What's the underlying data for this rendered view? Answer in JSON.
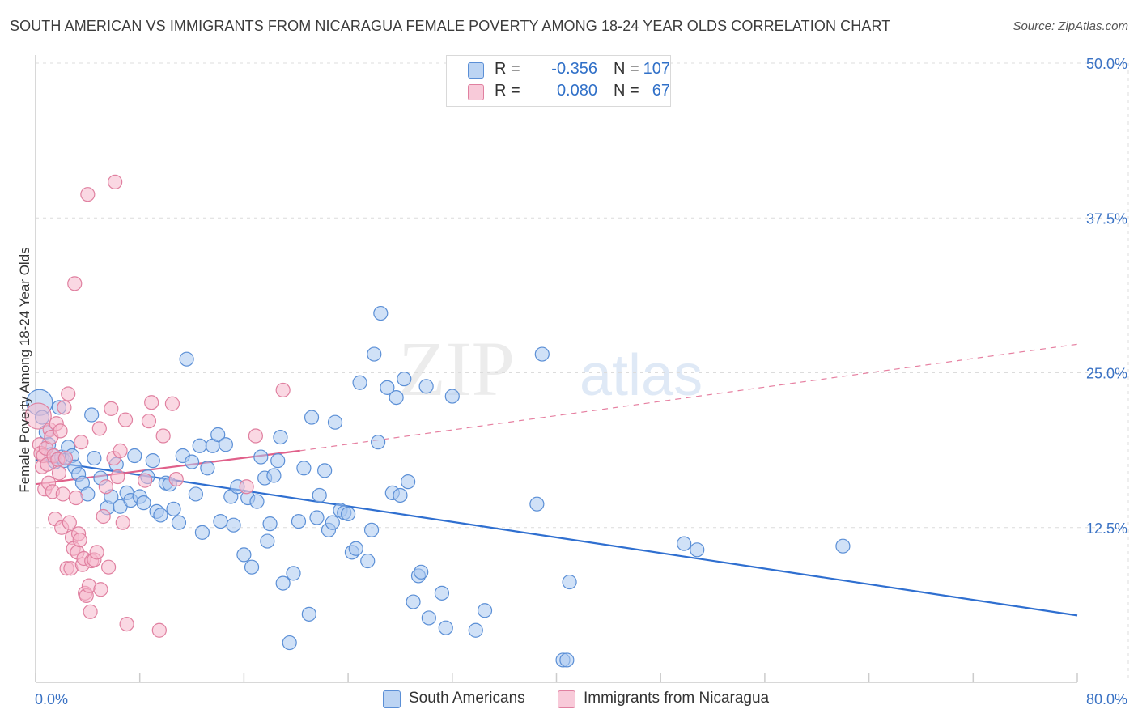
{
  "header": {
    "title": "SOUTH AMERICAN VS IMMIGRANTS FROM NICARAGUA FEMALE POVERTY AMONG 18-24 YEAR OLDS CORRELATION CHART",
    "source": "Source: ZipAtlas.com"
  },
  "legend_top": {
    "rows": [
      {
        "r_label": "R =",
        "r_value": "-0.356",
        "n_label": "N =",
        "n_value": "107"
      },
      {
        "r_label": "R =",
        "r_value": "0.080",
        "n_label": "N =",
        "n_value": "67"
      }
    ]
  },
  "legend_bottom": {
    "items": [
      {
        "label": "South Americans"
      },
      {
        "label": "Immigrants from Nicaragua"
      }
    ]
  },
  "watermark": {
    "part1": "ZIP",
    "part2": "atlas"
  },
  "colors": {
    "blue_fill": "#a9c8f0",
    "blue_stroke": "#5b8fd6",
    "blue_line": "#2f6fd0",
    "pink_fill": "#f5b8cc",
    "pink_stroke": "#e080a0",
    "pink_line": "#e0608a",
    "grid": "#dcdcdc",
    "axis": "#cccccc",
    "tick_label": "#3a72c4"
  },
  "chart_data": {
    "type": "scatter",
    "title": "SOUTH AMERICAN VS IMMIGRANTS FROM NICARAGUA FEMALE POVERTY AMONG 18-24 YEAR OLDS CORRELATION CHART",
    "xlabel": "",
    "ylabel": "Female Poverty Among 18-24 Year Olds",
    "xlim": [
      0,
      80
    ],
    "ylim": [
      0,
      50
    ],
    "x_tick_labels": [
      {
        "value": 0,
        "label": "0.0%"
      },
      {
        "value": 80,
        "label": "80.0%"
      }
    ],
    "y_tick_labels": [
      {
        "value": 12.5,
        "label": "12.5%"
      },
      {
        "value": 25,
        "label": "25.0%"
      },
      {
        "value": 37.5,
        "label": "37.5%"
      },
      {
        "value": 50,
        "label": "50.0%"
      }
    ],
    "grid": true,
    "legend_position": "top-center",
    "series": [
      {
        "name": "South Americans",
        "r": -0.356,
        "n": 107,
        "trend": {
          "x": [
            0,
            80
          ],
          "y": [
            18.0,
            5.4
          ],
          "style": "solid"
        },
        "points": [
          {
            "x": 0.3,
            "y": 22.6
          },
          {
            "x": 0.5,
            "y": 21.4
          },
          {
            "x": 0.8,
            "y": 20.2
          },
          {
            "x": 1.0,
            "y": 19.2
          },
          {
            "x": 1.2,
            "y": 18.4
          },
          {
            "x": 1.5,
            "y": 17.8
          },
          {
            "x": 1.8,
            "y": 22.2
          },
          {
            "x": 2.0,
            "y": 18.2
          },
          {
            "x": 2.2,
            "y": 17.9
          },
          {
            "x": 2.5,
            "y": 19.0
          },
          {
            "x": 2.8,
            "y": 18.3
          },
          {
            "x": 3.0,
            "y": 17.4
          },
          {
            "x": 3.3,
            "y": 16.8
          },
          {
            "x": 3.6,
            "y": 16.1
          },
          {
            "x": 4.0,
            "y": 15.2
          },
          {
            "x": 4.3,
            "y": 21.6
          },
          {
            "x": 4.5,
            "y": 18.1
          },
          {
            "x": 5.0,
            "y": 16.5
          },
          {
            "x": 5.5,
            "y": 14.1
          },
          {
            "x": 5.8,
            "y": 15.0
          },
          {
            "x": 6.2,
            "y": 17.6
          },
          {
            "x": 6.5,
            "y": 14.2
          },
          {
            "x": 7.0,
            "y": 15.3
          },
          {
            "x": 7.3,
            "y": 14.7
          },
          {
            "x": 7.6,
            "y": 18.3
          },
          {
            "x": 8.0,
            "y": 15.0
          },
          {
            "x": 8.3,
            "y": 14.5
          },
          {
            "x": 8.6,
            "y": 16.6
          },
          {
            "x": 9.0,
            "y": 17.9
          },
          {
            "x": 9.3,
            "y": 13.8
          },
          {
            "x": 9.6,
            "y": 13.5
          },
          {
            "x": 10.0,
            "y": 16.1
          },
          {
            "x": 10.3,
            "y": 16.0
          },
          {
            "x": 10.6,
            "y": 14.0
          },
          {
            "x": 11.0,
            "y": 12.9
          },
          {
            "x": 11.3,
            "y": 18.3
          },
          {
            "x": 11.6,
            "y": 26.1
          },
          {
            "x": 12.0,
            "y": 17.8
          },
          {
            "x": 12.3,
            "y": 15.2
          },
          {
            "x": 12.6,
            "y": 19.1
          },
          {
            "x": 12.8,
            "y": 12.1
          },
          {
            "x": 13.2,
            "y": 17.3
          },
          {
            "x": 13.6,
            "y": 19.1
          },
          {
            "x": 14.0,
            "y": 20.0
          },
          {
            "x": 14.2,
            "y": 13.0
          },
          {
            "x": 14.6,
            "y": 19.2
          },
          {
            "x": 15.0,
            "y": 15.0
          },
          {
            "x": 15.2,
            "y": 12.7
          },
          {
            "x": 15.5,
            "y": 15.8
          },
          {
            "x": 16.0,
            "y": 10.3
          },
          {
            "x": 16.3,
            "y": 14.9
          },
          {
            "x": 16.6,
            "y": 9.3
          },
          {
            "x": 17.0,
            "y": 14.6
          },
          {
            "x": 17.3,
            "y": 18.2
          },
          {
            "x": 17.6,
            "y": 16.5
          },
          {
            "x": 17.8,
            "y": 11.4
          },
          {
            "x": 18.0,
            "y": 12.8
          },
          {
            "x": 18.3,
            "y": 16.7
          },
          {
            "x": 18.6,
            "y": 17.9
          },
          {
            "x": 18.8,
            "y": 19.8
          },
          {
            "x": 19.0,
            "y": 8.0
          },
          {
            "x": 19.5,
            "y": 3.2
          },
          {
            "x": 19.8,
            "y": 8.8
          },
          {
            "x": 20.2,
            "y": 13.0
          },
          {
            "x": 20.6,
            "y": 17.3
          },
          {
            "x": 21.0,
            "y": 5.5
          },
          {
            "x": 21.2,
            "y": 21.4
          },
          {
            "x": 21.6,
            "y": 13.3
          },
          {
            "x": 21.8,
            "y": 15.1
          },
          {
            "x": 22.2,
            "y": 17.1
          },
          {
            "x": 22.5,
            "y": 12.3
          },
          {
            "x": 22.8,
            "y": 12.9
          },
          {
            "x": 23.0,
            "y": 21.0
          },
          {
            "x": 23.4,
            "y": 13.9
          },
          {
            "x": 23.7,
            "y": 13.7
          },
          {
            "x": 24.0,
            "y": 13.6
          },
          {
            "x": 24.3,
            "y": 10.5
          },
          {
            "x": 24.6,
            "y": 10.8
          },
          {
            "x": 24.9,
            "y": 24.2
          },
          {
            "x": 25.5,
            "y": 9.8
          },
          {
            "x": 25.8,
            "y": 12.3
          },
          {
            "x": 26.0,
            "y": 26.5
          },
          {
            "x": 26.3,
            "y": 19.4
          },
          {
            "x": 26.5,
            "y": 29.8
          },
          {
            "x": 27.0,
            "y": 23.8
          },
          {
            "x": 27.4,
            "y": 15.3
          },
          {
            "x": 27.7,
            "y": 23.0
          },
          {
            "x": 28.0,
            "y": 15.1
          },
          {
            "x": 28.3,
            "y": 24.5
          },
          {
            "x": 28.6,
            "y": 16.2
          },
          {
            "x": 29.0,
            "y": 6.5
          },
          {
            "x": 29.4,
            "y": 8.6
          },
          {
            "x": 29.6,
            "y": 8.9
          },
          {
            "x": 30.0,
            "y": 23.9
          },
          {
            "x": 30.2,
            "y": 5.2
          },
          {
            "x": 31.2,
            "y": 7.2
          },
          {
            "x": 31.5,
            "y": 4.4
          },
          {
            "x": 32.0,
            "y": 23.1
          },
          {
            "x": 33.8,
            "y": 4.2
          },
          {
            "x": 34.5,
            "y": 5.8
          },
          {
            "x": 38.5,
            "y": 14.4
          },
          {
            "x": 38.9,
            "y": 26.5
          },
          {
            "x": 40.5,
            "y": 1.8
          },
          {
            "x": 40.8,
            "y": 1.8
          },
          {
            "x": 41.0,
            "y": 8.1
          },
          {
            "x": 49.8,
            "y": 11.2
          },
          {
            "x": 50.8,
            "y": 10.7
          },
          {
            "x": 62.0,
            "y": 11.0
          }
        ]
      },
      {
        "name": "Immigrants from Nicaragua",
        "r": 0.08,
        "n": 67,
        "trend": {
          "x": [
            0,
            20.3
          ],
          "y": [
            16.0,
            18.7
          ],
          "style": "solid",
          "extended_dashed_to": {
            "x": 80,
            "y": 27.3
          }
        },
        "points": [
          {
            "x": 0.2,
            "y": 21.5
          },
          {
            "x": 0.3,
            "y": 19.2
          },
          {
            "x": 0.4,
            "y": 18.5
          },
          {
            "x": 0.5,
            "y": 17.4
          },
          {
            "x": 0.6,
            "y": 18.3
          },
          {
            "x": 0.7,
            "y": 15.6
          },
          {
            "x": 0.8,
            "y": 18.9
          },
          {
            "x": 0.9,
            "y": 17.6
          },
          {
            "x": 1.0,
            "y": 16.1
          },
          {
            "x": 1.1,
            "y": 20.4
          },
          {
            "x": 1.2,
            "y": 19.8
          },
          {
            "x": 1.3,
            "y": 15.4
          },
          {
            "x": 1.4,
            "y": 18.3
          },
          {
            "x": 1.5,
            "y": 13.2
          },
          {
            "x": 1.6,
            "y": 20.9
          },
          {
            "x": 1.7,
            "y": 18.0
          },
          {
            "x": 1.8,
            "y": 16.9
          },
          {
            "x": 1.9,
            "y": 20.3
          },
          {
            "x": 2.0,
            "y": 12.5
          },
          {
            "x": 2.1,
            "y": 15.2
          },
          {
            "x": 2.2,
            "y": 22.2
          },
          {
            "x": 2.3,
            "y": 18.1
          },
          {
            "x": 2.4,
            "y": 9.2
          },
          {
            "x": 2.5,
            "y": 23.3
          },
          {
            "x": 2.6,
            "y": 12.9
          },
          {
            "x": 2.7,
            "y": 9.2
          },
          {
            "x": 2.8,
            "y": 11.7
          },
          {
            "x": 2.9,
            "y": 10.8
          },
          {
            "x": 3.0,
            "y": 32.2
          },
          {
            "x": 3.1,
            "y": 14.9
          },
          {
            "x": 3.2,
            "y": 10.5
          },
          {
            "x": 3.3,
            "y": 12.0
          },
          {
            "x": 3.4,
            "y": 11.5
          },
          {
            "x": 3.5,
            "y": 19.4
          },
          {
            "x": 3.6,
            "y": 9.5
          },
          {
            "x": 3.7,
            "y": 10.0
          },
          {
            "x": 3.8,
            "y": 7.2
          },
          {
            "x": 3.9,
            "y": 7.0
          },
          {
            "x": 4.0,
            "y": 39.4
          },
          {
            "x": 4.1,
            "y": 7.8
          },
          {
            "x": 4.2,
            "y": 5.7
          },
          {
            "x": 4.3,
            "y": 9.8
          },
          {
            "x": 4.5,
            "y": 9.9
          },
          {
            "x": 4.7,
            "y": 10.5
          },
          {
            "x": 4.9,
            "y": 20.5
          },
          {
            "x": 5.0,
            "y": 7.5
          },
          {
            "x": 5.2,
            "y": 13.4
          },
          {
            "x": 5.4,
            "y": 15.8
          },
          {
            "x": 5.6,
            "y": 9.3
          },
          {
            "x": 5.8,
            "y": 22.1
          },
          {
            "x": 6.0,
            "y": 18.1
          },
          {
            "x": 6.1,
            "y": 40.4
          },
          {
            "x": 6.3,
            "y": 16.6
          },
          {
            "x": 6.5,
            "y": 18.7
          },
          {
            "x": 6.7,
            "y": 12.9
          },
          {
            "x": 6.9,
            "y": 21.2
          },
          {
            "x": 7.0,
            "y": 4.7
          },
          {
            "x": 8.4,
            "y": 16.3
          },
          {
            "x": 8.7,
            "y": 21.1
          },
          {
            "x": 8.9,
            "y": 22.6
          },
          {
            "x": 9.5,
            "y": 4.2
          },
          {
            "x": 9.8,
            "y": 19.9
          },
          {
            "x": 10.5,
            "y": 22.5
          },
          {
            "x": 10.8,
            "y": 16.4
          },
          {
            "x": 16.2,
            "y": 15.8
          },
          {
            "x": 16.9,
            "y": 19.9
          },
          {
            "x": 19.0,
            "y": 23.6
          }
        ]
      }
    ]
  }
}
